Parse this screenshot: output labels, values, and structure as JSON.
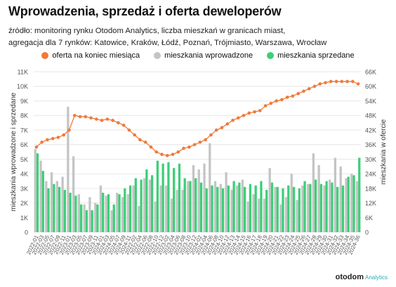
{
  "title": "Wprowadzenia, sprzedaż i oferta deweloperów",
  "subtitle_line1": "źródło: monitoring rynku Otodom Analytics, liczba mieszkań w granicach miast,",
  "subtitle_line2": "agregacja dla 7 rynków: Katowice, Kraków, Łódź, Poznań, Trójmiasto, Warszawa, Wrocław",
  "brand": "otodom",
  "brand_small": "Analytics",
  "colors": {
    "offer": "#f07a3a",
    "introduced": "#c4c4c4",
    "sold": "#3ccf78",
    "grid": "#e6e6e6"
  },
  "chart_data": {
    "type": "bar",
    "ylabel": "mieszkania wprowadzone i sprzedane",
    "y2label": "mieszkania w ofercie",
    "ylim": [
      0,
      11000
    ],
    "y2lim": [
      0,
      66000
    ],
    "yticks": [
      "0",
      "1K",
      "2K",
      "3K",
      "4K",
      "5K",
      "6K",
      "7K",
      "8K",
      "9K",
      "10K",
      "11K"
    ],
    "y2ticks": [
      "0",
      "6K",
      "12K",
      "18K",
      "24K",
      "30K",
      "36K",
      "42K",
      "48K",
      "54K",
      "60K",
      "66K"
    ],
    "grid": true,
    "legend_position": "top-center",
    "categories": [
      "2022-01",
      "2022-02",
      "2022-03",
      "2022-04",
      "2022-05",
      "2022-06",
      "2022-07",
      "2022-08",
      "2022-09",
      "2022-10",
      "2022-11",
      "2022-12",
      "2023-01",
      "2023-02",
      "2023-03",
      "2023-04",
      "2023-05",
      "2023-06",
      "2023-07",
      "2023-08",
      "2023-09",
      "2023-10",
      "2023-11",
      "2023-12",
      "2024-01",
      "2024-02",
      "2024-03",
      "2024-04",
      "2024-05",
      "2024-06",
      "2024-07",
      "2024-08",
      "2024-09",
      "2024-10",
      "2024-11",
      "2024-12",
      "2024-13",
      "2024-14",
      "2024-15",
      "2024-16",
      "2024-17",
      "2024-18",
      "2024-19",
      "2024-20",
      "2024-21",
      "2024-22",
      "2024-23",
      "2024-24",
      "2024-25",
      "2024-26",
      "2024-27",
      "2024-28",
      "2024-29",
      "2024-30",
      "2024-31",
      "2024-32",
      "2024-33",
      "2024-34",
      "2024-35",
      "2024-36"
    ],
    "tick_labels": [
      "2022-01",
      "2022-03",
      "2022-05",
      "2022-07",
      "2022-09",
      "2022-11",
      "2023-01",
      "2023-03",
      "2023-05",
      "2023-07",
      "2023-09",
      "2023-11",
      "2024-01",
      "2024-03",
      "2024-05",
      "2024-07",
      "2024-09",
      "2024-11",
      "2022-02",
      "2022-04",
      "2022-06",
      "2022-08",
      "2022-10",
      "2022-12",
      "2023-02",
      "2023-04",
      "2023-06",
      "2023-08",
      "2023-10",
      "2023-12",
      "2024-02",
      "2024-04",
      "2024-06",
      "2024-08",
      "2024-10",
      "2024-12",
      "2024-13",
      "2024-14",
      "2024-15",
      "2024-16",
      "2024-17",
      "2024-18",
      "2024-19",
      "2024-20",
      "2024-21",
      "2024-22",
      "2024-23",
      "2024-24",
      "2024-25",
      "2024-26",
      "2024-27",
      "2024-28",
      "2024-29",
      "2024-30",
      "2024-31",
      "2024-32",
      "2024-33",
      "2024-34",
      "2024-35",
      "2024-36"
    ],
    "series": [
      {
        "name": "oferta na koniec miesiąca",
        "type": "line",
        "axis": "right",
        "values": [
          35000,
          37000,
          38000,
          38500,
          39000,
          40000,
          42000,
          48000,
          47500,
          47500,
          47000,
          46500,
          46000,
          46500,
          46000,
          45000,
          44000,
          42000,
          40000,
          38000,
          37000,
          35000,
          33000,
          32000,
          31500,
          32000,
          33000,
          34500,
          35000,
          36000,
          37000,
          38000,
          40000,
          42000,
          43000,
          44500,
          46000,
          47000,
          48000,
          49000,
          49500,
          50000,
          52000,
          53000,
          54000,
          54500,
          55500,
          56000,
          57000,
          58000,
          59000,
          60000,
          61000,
          61500,
          62000,
          62000,
          62000,
          62000,
          62000,
          61000
        ]
      },
      {
        "name": "mieszkania wprowadzone",
        "type": "bar",
        "axis": "left",
        "values": [
          5700,
          4900,
          3500,
          4100,
          3500,
          3800,
          8600,
          5200,
          2600,
          1900,
          2400,
          2000,
          3200,
          2500,
          1500,
          2700,
          2400,
          2600,
          3200,
          1800,
          3700,
          3600,
          2100,
          3200,
          3200,
          2300,
          2900,
          2900,
          3500,
          4600,
          4300,
          4700,
          6100,
          3500,
          3300,
          4100,
          2900,
          3200,
          3600,
          2100,
          2600,
          2300,
          2300,
          4400,
          3100,
          1900,
          2400,
          4000,
          2200,
          3200,
          3300,
          5400,
          4600,
          3200,
          3600,
          5100,
          4500,
          3700,
          4000,
          3500
        ]
      },
      {
        "name": "mieszkania sprzedane",
        "type": "bar",
        "axis": "left",
        "values": [
          5400,
          4200,
          3000,
          3300,
          3100,
          2900,
          2700,
          2500,
          1900,
          1500,
          1500,
          1900,
          2700,
          2600,
          1900,
          2600,
          3000,
          3200,
          3700,
          3600,
          4300,
          3900,
          4900,
          4700,
          4800,
          4400,
          4700,
          3700,
          3500,
          3700,
          3400,
          3000,
          3200,
          3100,
          3000,
          3200,
          3500,
          3400,
          3100,
          3300,
          3200,
          3500,
          2900,
          3400,
          3100,
          3000,
          3200,
          3100,
          3000,
          3500,
          3300,
          3600,
          3300,
          3500,
          3400,
          3100,
          3200,
          3800,
          3900,
          5100
        ]
      }
    ]
  }
}
